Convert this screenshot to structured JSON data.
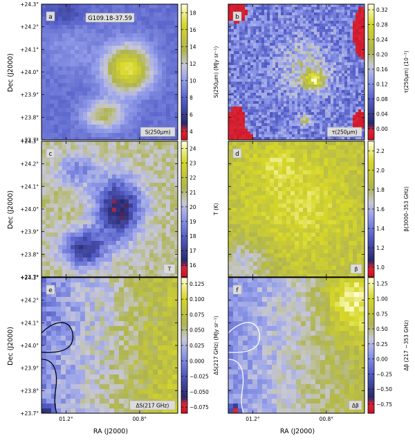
{
  "field_name": "G109.18-37.59",
  "dec_axis_label": "Dec (J2000)",
  "ra_axis_label": "RA (J2000)",
  "dec_ticks": [
    "+24.3°",
    "+24.2°",
    "+24.1°",
    "+24.0°",
    "+23.9°",
    "+23.8°",
    "+23.7°"
  ],
  "ra_ticks": [
    "01.2°",
    "00.8°"
  ],
  "chart_data": [
    {
      "type": "heatmap",
      "letter": "a",
      "corner_label": "S(250μm)",
      "colorbar_label": "S(250μm) (MJy sr⁻¹)",
      "colorbar_ticks": [
        "4",
        "6",
        "8",
        "10",
        "12",
        "14",
        "16",
        "18"
      ],
      "colorbar_tick_values": [
        4,
        6,
        8,
        10,
        12,
        14,
        16,
        18
      ],
      "range": [
        3,
        19
      ]
    },
    {
      "type": "heatmap",
      "letter": "b",
      "corner_label": "τ(250μm)",
      "colorbar_label": "τ(250μm) (10⁻³)",
      "colorbar_ticks": [
        "0.00",
        "0.04",
        "0.08",
        "0.12",
        "0.16",
        "0.20",
        "0.24",
        "0.28",
        "0.32"
      ],
      "colorbar_tick_values": [
        0.0,
        0.04,
        0.08,
        0.12,
        0.16,
        0.2,
        0.24,
        0.28,
        0.32
      ],
      "range": [
        -0.03,
        0.335
      ]
    },
    {
      "type": "heatmap",
      "letter": "c",
      "corner_label": "T",
      "colorbar_label": "T (K)",
      "colorbar_ticks": [
        "16",
        "17",
        "18",
        "19",
        "20",
        "21",
        "22",
        "23",
        "24"
      ],
      "colorbar_tick_values": [
        16,
        17,
        18,
        19,
        20,
        21,
        22,
        23,
        24
      ],
      "range": [
        15.2,
        24.5
      ]
    },
    {
      "type": "heatmap",
      "letter": "d",
      "corner_label": "β",
      "colorbar_label": "β(3000–353 GHz)",
      "colorbar_ticks": [
        "1.0",
        "1.2",
        "1.4",
        "1.6",
        "1.8",
        "2.0",
        "2.2"
      ],
      "colorbar_tick_values": [
        1.0,
        1.2,
        1.4,
        1.6,
        1.8,
        2.0,
        2.2
      ],
      "range": [
        0.9,
        2.3
      ]
    },
    {
      "type": "heatmap",
      "letter": "e",
      "corner_label": "ΔS(217 GHz)",
      "colorbar_label": "ΔS(217 GHz) (MJy sr⁻¹)",
      "colorbar_ticks": [
        "−0.075",
        "−0.050",
        "−0.025",
        "0.000",
        "0.025",
        "0.050",
        "0.075",
        "0.100",
        "0.125"
      ],
      "colorbar_tick_values": [
        -0.075,
        -0.05,
        -0.025,
        0.0,
        0.025,
        0.05,
        0.075,
        0.1,
        0.125
      ],
      "range": [
        -0.085,
        0.135
      ]
    },
    {
      "type": "heatmap",
      "letter": "f",
      "corner_label": "Δβ",
      "colorbar_label": "Δβ (217 −353 GHz)",
      "colorbar_ticks": [
        "−0.75",
        "−0.50",
        "−0.25",
        "0.00",
        "0.25",
        "0.50",
        "0.75",
        "1.00",
        "1.25"
      ],
      "colorbar_tick_values": [
        -0.75,
        -0.5,
        -0.25,
        0.0,
        0.25,
        0.5,
        0.75,
        1.0,
        1.25
      ],
      "range": [
        -0.9,
        1.35
      ]
    }
  ]
}
